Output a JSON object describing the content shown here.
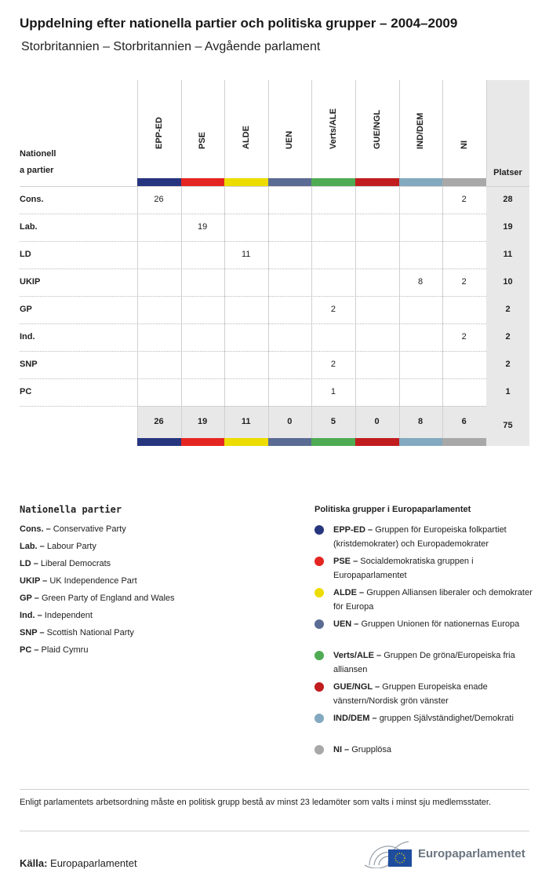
{
  "title": "Uppdelning efter nationella partier och politiska grupper – 2004–2009",
  "subtitle": "Storbritannien – Storbritannien – Avgående parlament",
  "table": {
    "row_header": "Nationella partier",
    "row_header_line1": "Nationell",
    "row_header_line2": "a partier",
    "total_header": "Platser",
    "groups": [
      {
        "name": "EPP-ED",
        "color": "#27357e"
      },
      {
        "name": "PSE",
        "color": "#e52521"
      },
      {
        "name": "ALDE",
        "color": "#ecdc00"
      },
      {
        "name": "UEN",
        "color": "#5a6b94"
      },
      {
        "name": "Verts/ALE",
        "color": "#4fab53"
      },
      {
        "name": "GUE/NGL",
        "color": "#c11c1e"
      },
      {
        "name": "IND/DEM",
        "color": "#82a9bf"
      },
      {
        "name": "NI",
        "color": "#a8a8a8"
      }
    ],
    "rows": [
      {
        "party": "Cons.",
        "values": [
          "26",
          "",
          "",
          "",
          "",
          "",
          "",
          "2"
        ],
        "total": "28"
      },
      {
        "party": "Lab.",
        "values": [
          "",
          "19",
          "",
          "",
          "",
          "",
          "",
          ""
        ],
        "total": "19"
      },
      {
        "party": "LD",
        "values": [
          "",
          "",
          "11",
          "",
          "",
          "",
          "",
          ""
        ],
        "total": "11"
      },
      {
        "party": "UKIP",
        "values": [
          "",
          "",
          "",
          "",
          "",
          "",
          "8",
          "2"
        ],
        "total": "10"
      },
      {
        "party": "GP",
        "values": [
          "",
          "",
          "",
          "",
          "2",
          "",
          "",
          ""
        ],
        "total": "2"
      },
      {
        "party": "Ind.",
        "values": [
          "",
          "",
          "",
          "",
          "",
          "",
          "",
          "2"
        ],
        "total": "2"
      },
      {
        "party": "SNP",
        "values": [
          "",
          "",
          "",
          "",
          "2",
          "",
          "",
          ""
        ],
        "total": "2"
      },
      {
        "party": "PC",
        "values": [
          "",
          "",
          "",
          "",
          "1",
          "",
          "",
          ""
        ],
        "total": "1"
      }
    ],
    "totals": [
      "26",
      "19",
      "11",
      "0",
      "5",
      "0",
      "8",
      "6"
    ],
    "grand_total": "75"
  },
  "legend_parties": {
    "title": "Nationella partier",
    "items": [
      {
        "abbr": "Cons. –",
        "name": "Conservative Party"
      },
      {
        "abbr": "Lab. –",
        "name": "Labour Party"
      },
      {
        "abbr": "LD –",
        "name": "Liberal Democrats"
      },
      {
        "abbr": "UKIP –",
        "name": "UK Independence Part"
      },
      {
        "abbr": "GP –",
        "name": "Green Party of England and Wales"
      },
      {
        "abbr": "Ind. –",
        "name": "Independent"
      },
      {
        "abbr": "SNP –",
        "name": "Scottish National Party"
      },
      {
        "abbr": "PC –",
        "name": "Plaid Cymru"
      }
    ]
  },
  "legend_groups": {
    "title": "Politiska grupper i Europaparlamentet",
    "items": [
      {
        "abbr": "EPP-ED –",
        "name": "Gruppen för Europeiska folkpartiet (kristdemokrater) och Europademokrater",
        "color": "#27357e"
      },
      {
        "abbr": "PSE –",
        "name": "Socialdemokratiska gruppen i Europaparlamentet",
        "color": "#e52521"
      },
      {
        "abbr": "ALDE –",
        "name": "Gruppen Alliansen liberaler och demokrater för Europa",
        "color": "#ecdc00"
      },
      {
        "abbr": "UEN –",
        "name": "Gruppen Unionen för nationernas Europa",
        "color": "#5a6b94"
      },
      {
        "abbr": "Verts/ALE –",
        "name": "Gruppen De gröna/Europeiska fria alliansen",
        "color": "#4fab53"
      },
      {
        "abbr": "GUE/NGL –",
        "name": "Gruppen Europeiska enade vänstern/Nordisk grön vänster",
        "color": "#c11c1e"
      },
      {
        "abbr": "IND/DEM –",
        "name": "gruppen Självständighet/Demokrati",
        "color": "#82a9bf"
      },
      {
        "abbr": "NI –",
        "name": "Grupplösa",
        "color": "#a8a8a8"
      }
    ]
  },
  "note": "Enligt parlamentets arbetsordning måste en politisk grupp bestå av minst 23 ledamöter som valts i minst sju medlemsstater.",
  "source": {
    "label": "Källa:",
    "value": "Europaparlamentet"
  },
  "logo_text": "Europaparlamentet"
}
